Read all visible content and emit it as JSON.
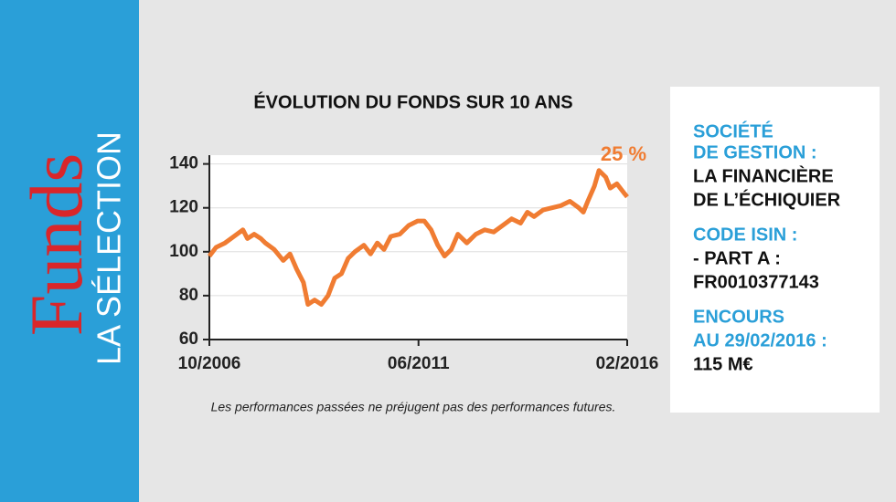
{
  "sidebar": {
    "title": "Funds",
    "subtitle": "LA SÉLECTION"
  },
  "chart_data": {
    "type": "line",
    "title": "ÉVOLUTION DU FONDS SUR 10 ANS",
    "annotation": "25 %",
    "footnote": "Les performances passées ne préjugent pas des performances futures.",
    "x": [
      2006.75,
      2006.9,
      2007.1,
      2007.3,
      2007.5,
      2007.6,
      2007.75,
      2007.9,
      2008.0,
      2008.2,
      2008.4,
      2008.55,
      2008.7,
      2008.85,
      2008.95,
      2009.1,
      2009.25,
      2009.4,
      2009.55,
      2009.7,
      2009.85,
      2010.0,
      2010.2,
      2010.35,
      2010.5,
      2010.65,
      2010.8,
      2011.0,
      2011.2,
      2011.4,
      2011.55,
      2011.7,
      2011.85,
      2012.0,
      2012.15,
      2012.3,
      2012.5,
      2012.7,
      2012.9,
      2013.1,
      2013.3,
      2013.5,
      2013.7,
      2013.85,
      2014.0,
      2014.2,
      2014.4,
      2014.6,
      2014.8,
      2015.0,
      2015.1,
      2015.2,
      2015.35,
      2015.45,
      2015.6,
      2015.7,
      2015.85,
      2016.0,
      2016.08
    ],
    "series": [
      {
        "color": "#f07c32",
        "values": [
          98,
          102,
          104,
          107,
          110,
          106,
          108,
          106,
          104,
          101,
          96,
          99,
          92,
          86,
          76,
          78,
          76,
          80,
          88,
          90,
          97,
          100,
          103,
          99,
          104,
          101,
          107,
          108,
          112,
          114,
          114,
          110,
          103,
          98,
          101,
          108,
          104,
          108,
          110,
          109,
          112,
          115,
          113,
          118,
          116,
          119,
          120,
          121,
          123,
          120,
          118,
          123,
          130,
          137,
          134,
          129,
          131,
          127,
          125
        ]
      }
    ],
    "xlim": [
      2006.75,
      2016.08
    ],
    "xticks": [
      {
        "value": 2006.75,
        "label": "10/2006"
      },
      {
        "value": 2011.42,
        "label": "06/2011"
      },
      {
        "value": 2016.08,
        "label": "02/2016"
      }
    ],
    "ylim": [
      60,
      144
    ],
    "yticks": [
      60,
      80,
      100,
      120,
      140
    ],
    "grid": true
  },
  "info": {
    "blocks": [
      {
        "heading": [
          "SOCIÉTÉ",
          "DE GESTION :"
        ],
        "text": [
          "LA FINANCIÈRE",
          "DE L’ÉCHIQUIER"
        ]
      },
      {
        "heading": [
          "CODE ISIN :"
        ],
        "text": [
          "- PART A :",
          "FR0010377143"
        ]
      },
      {
        "heading": [
          "ENCOURS",
          "AU 29/02/2016 :"
        ],
        "text": [
          "115 M€"
        ]
      }
    ]
  }
}
